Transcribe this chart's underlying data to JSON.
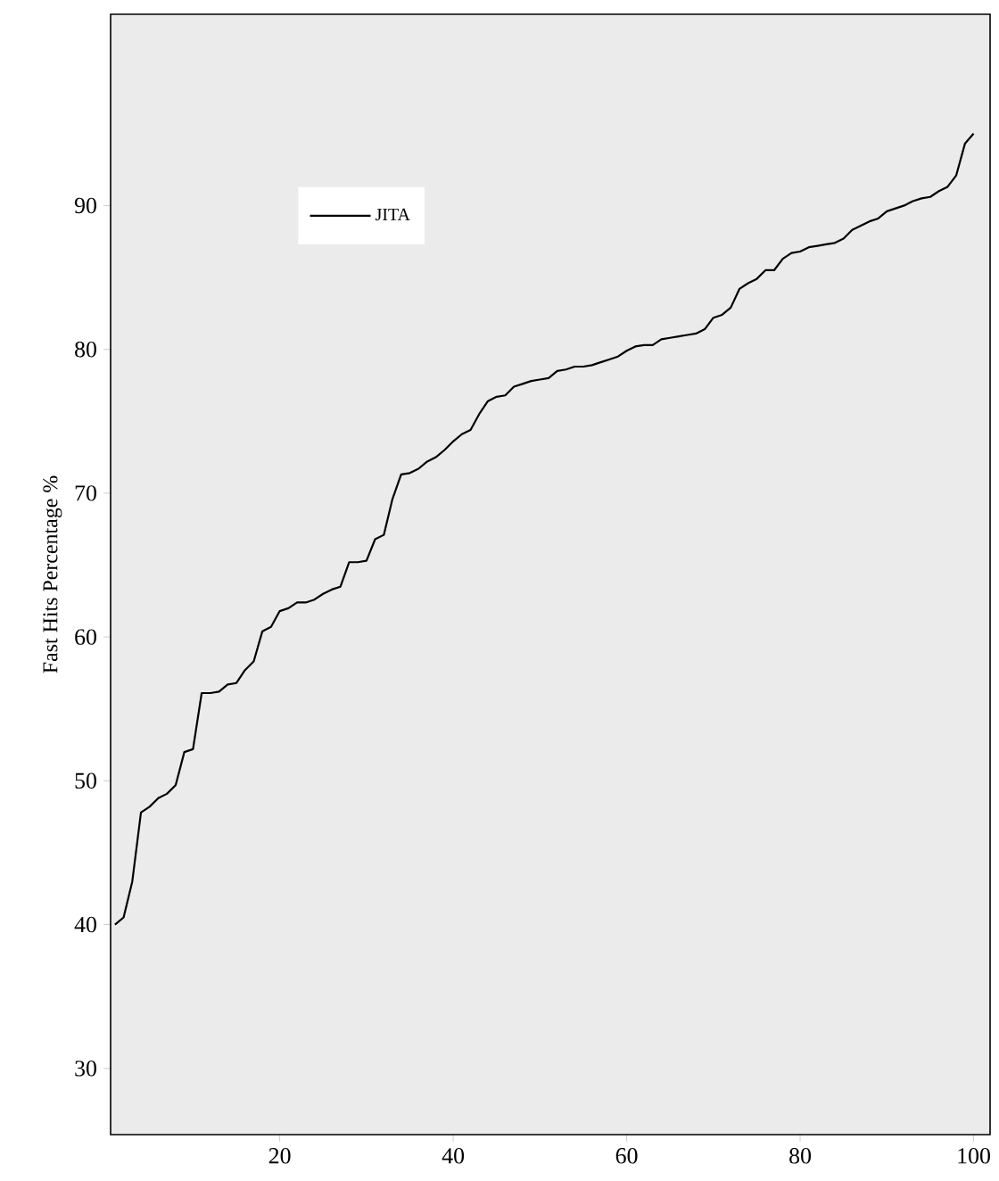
{
  "chart_data": {
    "type": "line",
    "ylabel": "Fast Hits Percentage %",
    "legend": "top left",
    "grid": false,
    "marker": "none",
    "line_style": "solid",
    "xlim": [
      0.5,
      101.9
    ],
    "ylim": [
      25.4,
      103.3
    ],
    "xticks": [
      20,
      40,
      60,
      80,
      100
    ],
    "yticks": [
      30,
      40,
      50,
      60,
      70,
      80,
      90
    ],
    "x": [
      1,
      2,
      3,
      4,
      5,
      6,
      7,
      8,
      9,
      10,
      11,
      12,
      13,
      14,
      15,
      16,
      17,
      18,
      19,
      20,
      21,
      22,
      23,
      24,
      25,
      26,
      27,
      28,
      29,
      30,
      31,
      32,
      33,
      34,
      35,
      36,
      37,
      38,
      39,
      40,
      41,
      42,
      43,
      44,
      45,
      46,
      47,
      48,
      49,
      50,
      51,
      52,
      53,
      54,
      55,
      56,
      57,
      58,
      59,
      60,
      61,
      62,
      63,
      64,
      65,
      66,
      67,
      68,
      69,
      70,
      71,
      72,
      73,
      74,
      75,
      76,
      77,
      78,
      79,
      80,
      81,
      82,
      83,
      84,
      85,
      86,
      87,
      88,
      89,
      90,
      91,
      92,
      93,
      94,
      95,
      96,
      97,
      98,
      99,
      100
    ],
    "series": [
      {
        "name": "JITA",
        "color": "#000000",
        "values": [
          40.0,
          40.5,
          43.0,
          47.8,
          48.2,
          48.8,
          49.1,
          49.7,
          52.0,
          52.2,
          56.1,
          56.1,
          56.2,
          56.7,
          56.8,
          57.7,
          58.3,
          60.4,
          60.7,
          61.8,
          62.0,
          62.4,
          62.4,
          62.6,
          63.0,
          63.3,
          63.5,
          65.2,
          65.2,
          65.3,
          66.8,
          67.1,
          69.6,
          71.3,
          71.4,
          71.7,
          72.2,
          72.5,
          73.0,
          73.6,
          74.1,
          74.4,
          75.5,
          76.4,
          76.7,
          76.8,
          77.4,
          77.6,
          77.8,
          77.9,
          78.0,
          78.5,
          78.6,
          78.8,
          78.8,
          78.9,
          79.1,
          79.3,
          79.5,
          79.9,
          80.2,
          80.3,
          80.3,
          80.7,
          80.8,
          80.9,
          81.0,
          81.1,
          81.4,
          82.2,
          82.4,
          82.9,
          84.2,
          84.6,
          84.9,
          85.5,
          85.5,
          86.3,
          86.7,
          86.8,
          87.1,
          87.2,
          87.3,
          87.4,
          87.7,
          88.3,
          88.6,
          88.9,
          89.1,
          89.6,
          89.8,
          90.0,
          90.3,
          90.5,
          90.6,
          91.0,
          91.3,
          92.1,
          94.3,
          95.0
        ]
      }
    ]
  }
}
